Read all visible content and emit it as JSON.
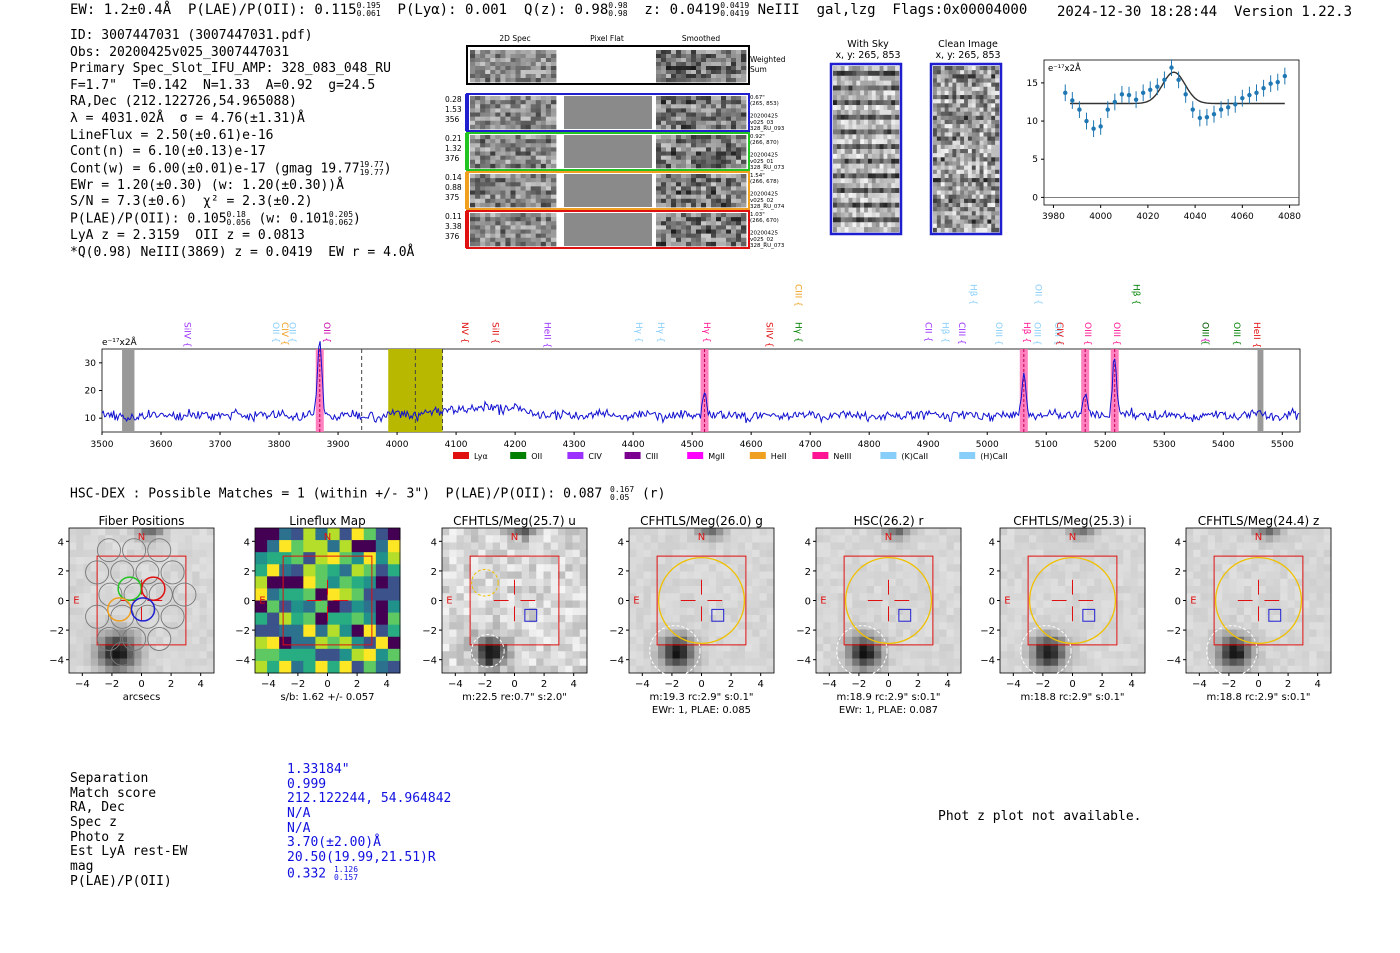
{
  "header": {
    "line": "EW: 1.2±0.4Å  P(LAE)/P(OII): 0.115",
    "line_p_up": "0.195",
    "line_p_lo": "0.061",
    "line_mid": "  P(Lyα): 0.001  Q(z): 0.98",
    "line_q_up": "0.98",
    "line_q_lo": "0.98",
    "line_z": "  z: 0.0419",
    "line_z_up": "0.0419",
    "line_z_lo": "0.0419",
    "line_tail": " NeIII  gal,lzg  Flags:0x00004000",
    "timestamp": "2024-12-30 18:28:44  Version 1.22.3"
  },
  "info": {
    "id": "ID: 3007447031 (3007447031.pdf)",
    "obs": "Obs: 20200425v025_3007447031",
    "primary": "Primary Spec_Slot_IFU_AMP: 328_083_048_RU",
    "fit": "F=1.7\"  T=0.142  N=1.33  A=0.92  g=24.5",
    "radec": "RA,Dec (212.122726,54.965088)",
    "lambda": "λ = 4031.02Å  σ = 4.76(±1.31)Å",
    "lineflux": "LineFlux = 2.50(±0.61)e-16",
    "contn": "Cont(n) = 6.10(±0.13)e-17",
    "contw": "Cont(w) = 6.00(±0.01)e-17 (gmag 19.77",
    "contw_up": "19.77",
    "contw_lo": "19.77",
    "contw_close": ")",
    "ewr": "EWr = 1.20(±0.30) (w: 1.20(±0.30))Å",
    "sn": "S/N = 7.3(±0.6)  χ² = 2.3(±0.2)",
    "plae": "P(LAE)/P(OII): 0.105",
    "plae_up": "0.18",
    "plae_lo": "0.056",
    "plae_w": " (w: 0.101",
    "plae_w_up": "0.205",
    "plae_w_lo": "0.062",
    "plae_close": ")",
    "lya": "LyA z = 2.3159  OII z = 0.0813",
    "q": "*Q(0.98) NeIII(3869) z = 0.0419  EW r = 4.0Å"
  },
  "cutouts": {
    "col_headers": [
      "2D Spec",
      "Pixel Flat",
      "Smoothed"
    ],
    "weighted_sum_label": "Weighted Sum",
    "rows": [
      {
        "stats": [
          "0.28",
          "1.53",
          "356"
        ],
        "color": "#1f1fd0",
        "meta": [
          "0.67\"",
          "(265, 853)",
          "",
          "20200425",
          "v025_03",
          "328_RU_093"
        ]
      },
      {
        "stats": [
          "0.21",
          "1.32",
          "376"
        ],
        "color": "#22c422",
        "meta": [
          "0.92\"",
          "(266, 870)",
          "",
          "20200425",
          "v025_01",
          "328_RU_073"
        ]
      },
      {
        "stats": [
          "0.14",
          "0.88",
          "375"
        ],
        "color": "#f0a020",
        "meta": [
          "1.54\"",
          "(266, 678)",
          "",
          "20200425",
          "v025_02",
          "328_RU_074"
        ]
      },
      {
        "stats": [
          "0.11",
          "3.38",
          "376"
        ],
        "color": "#e01010",
        "meta": [
          "1.03\"",
          "(266, 670)",
          "",
          "20200425",
          "v025_02",
          "328_RU_073"
        ]
      }
    ],
    "with_sky_title": "With Sky",
    "with_sky_coords": "x, y: 265, 853",
    "clean_title": "Clean Image",
    "clean_coords": "x, y: 265, 853"
  },
  "fit_plot": {
    "ylabel": "e⁻¹⁷x2Å",
    "xticks": [
      "3980",
      "4000",
      "4020",
      "4040",
      "4060",
      "4080"
    ],
    "yticks": [
      "0",
      "5",
      "10",
      "15"
    ],
    "xlim": [
      3976,
      4084
    ],
    "ylim": [
      -1,
      18
    ],
    "points_x": [
      3985,
      3988,
      3991,
      3994,
      3997,
      4000,
      4003,
      4006,
      4009,
      4012,
      4015,
      4018,
      4021,
      4024,
      4027,
      4030,
      4033,
      4036,
      4039,
      4042,
      4045,
      4048,
      4051,
      4054,
      4057,
      4060,
      4063,
      4066,
      4069,
      4072,
      4075,
      4078
    ],
    "points_y": [
      13.7,
      12.7,
      11.5,
      10.0,
      9.0,
      9.3,
      11.5,
      12.5,
      13.5,
      13.4,
      12.8,
      13.7,
      14.1,
      14.5,
      15.4,
      17.0,
      15.4,
      13.5,
      11.5,
      10.4,
      10.5,
      10.9,
      11.5,
      11.8,
      12.2,
      13.0,
      13.4,
      13.7,
      14.3,
      14.9,
      15.1,
      15.9
    ],
    "fit_peak": 16.4,
    "fit_base": 12.3,
    "fit_center": 4031,
    "fit_sigma": 4.76
  },
  "spectrum": {
    "ylabel": "e⁻¹⁷x2Å",
    "xlim": [
      3500,
      5530
    ],
    "ylim": [
      5,
      35
    ],
    "xticks": [
      3500,
      3600,
      3700,
      3800,
      3900,
      4000,
      4100,
      4200,
      4300,
      4400,
      4500,
      4600,
      4700,
      4800,
      4900,
      5000,
      5100,
      5200,
      5300,
      5400,
      5500
    ],
    "yticks": [
      10,
      20,
      30
    ],
    "emission_peaks": [
      {
        "x": 3869,
        "amp": 28
      },
      {
        "x": 4521,
        "amp": 9
      },
      {
        "x": 5062,
        "amp": 16
      },
      {
        "x": 5166,
        "amp": 7
      },
      {
        "x": 5216,
        "amp": 22
      }
    ],
    "line_labels": [
      {
        "x": 3640,
        "text": "SiIV",
        "color": "#9b30ff"
      },
      {
        "x": 3790,
        "text": "OII",
        "color": "#87cefa"
      },
      {
        "x": 3805,
        "text": "CIV",
        "color": "#f0a020"
      },
      {
        "x": 3818,
        "text": "OII",
        "color": "#87cefa"
      },
      {
        "x": 3876,
        "text": "OII",
        "color": "#cc00aa"
      },
      {
        "x": 4110,
        "text": "NV",
        "color": "#e01010"
      },
      {
        "x": 4162,
        "text": "SiII",
        "color": "#e01010"
      },
      {
        "x": 4250,
        "text": "HeII",
        "color": "#9b30ff"
      },
      {
        "x": 4405,
        "text": "Hγ",
        "color": "#87cefa"
      },
      {
        "x": 4442,
        "text": "Hγ",
        "color": "#87cefa"
      },
      {
        "x": 4520,
        "text": "Hγ",
        "color": "#ff1493"
      },
      {
        "x": 4626,
        "text": "SiIV",
        "color": "#e01010"
      },
      {
        "x": 4675,
        "text": "CIII",
        "color": "#f0a020"
      },
      {
        "x": 4675,
        "text": "Hγ",
        "color": "#008000"
      },
      {
        "x": 4895,
        "text": "CII",
        "color": "#9b30ff"
      },
      {
        "x": 4924,
        "text": "Hβ",
        "color": "#87cefa"
      },
      {
        "x": 4952,
        "text": "CIII",
        "color": "#9b30ff"
      },
      {
        "x": 4972,
        "text": "Hβ",
        "color": "#87cefa"
      },
      {
        "x": 5015,
        "text": "OIII",
        "color": "#87cefa"
      },
      {
        "x": 5062,
        "text": "Hβ",
        "color": "#ff1493"
      },
      {
        "x": 5080,
        "text": "OIII",
        "color": "#87cefa"
      },
      {
        "x": 5082,
        "text": "OII",
        "color": "#87cefa"
      },
      {
        "x": 5115,
        "text": "OIII",
        "color": "#87cefa"
      },
      {
        "x": 5118,
        "text": "CIV",
        "color": "#e01010"
      },
      {
        "x": 5166,
        "text": "OIII",
        "color": "#ff1493"
      },
      {
        "x": 5215,
        "text": "OIII",
        "color": "#ff1493"
      },
      {
        "x": 5248,
        "text": "Hβ",
        "color": "#008000"
      },
      {
        "x": 5365,
        "text": "OII",
        "color": "#cc00aa"
      },
      {
        "x": 5365,
        "text": "OIII",
        "color": "#008000"
      },
      {
        "x": 5418,
        "text": "OIII",
        "color": "#008000"
      },
      {
        "x": 5452,
        "text": "HeII",
        "color": "#e01010"
      }
    ],
    "legend": [
      {
        "text": "Lyα",
        "color": "#e01010"
      },
      {
        "text": "OII",
        "color": "#008000"
      },
      {
        "text": "CIV",
        "color": "#9b30ff"
      },
      {
        "text": "CIII",
        "color": "#7b0090"
      },
      {
        "text": "MgII",
        "color": "#ff00ff"
      },
      {
        "text": "HeII",
        "color": "#f0a020"
      },
      {
        "text": "NeIII",
        "color": "#ff1493"
      },
      {
        "text": "(K)CaII",
        "color": "#87cefa"
      },
      {
        "text": "(H)CaII",
        "color": "#87cefa"
      }
    ]
  },
  "hsc_line": "HSC-DEX : Possible Matches = 1 (within +/- 3\")  P(LAE)/P(OII): 0.087",
  "hsc_up": "0.167",
  "hsc_lo": "0.05",
  "hsc_tail": " (r)",
  "thumbnails": [
    {
      "title": "Fiber Positions",
      "sub1": "arcsecs",
      "sub2": "",
      "kind": "fibers"
    },
    {
      "title": "Lineflux Map",
      "sub1": "s/b: 1.62 +/- 0.057",
      "sub2": "",
      "kind": "lineflux"
    },
    {
      "title": "CFHTLS/Meg(25.7) u",
      "sub1": "m:22.5   re:0.7\"   s:2.0\"",
      "sub2": "",
      "kind": "u"
    },
    {
      "title": "CFHTLS/Meg(26.0) g",
      "sub1": "m:19.3 rc:2.9\"   s:0.1\"",
      "sub2": "EWr: 1, PLAE: 0.085",
      "kind": "g"
    },
    {
      "title": "HSC(26.2) r",
      "sub1": "m:18.9 rc:2.9\"   s:0.1\"",
      "sub2": "EWr: 1, PLAE: 0.087",
      "kind": "r"
    },
    {
      "title": "CFHTLS/Meg(25.3) i",
      "sub1": "m:18.8 rc:2.9\"   s:0.1\"",
      "sub2": "",
      "kind": "i"
    },
    {
      "title": "CFHTLS/Meg(24.4) z",
      "sub1": "m:18.8 rc:2.9\"   s:0.1\"",
      "sub2": "",
      "kind": "z"
    }
  ],
  "thumb_axis": {
    "ticks": [
      "−4",
      "−2",
      "0",
      "2",
      "4"
    ],
    "north": "N",
    "east": "E"
  },
  "separation_table": [
    {
      "label": "Separation",
      "value": "1.33184\""
    },
    {
      "label": "Match score",
      "value": "0.999"
    },
    {
      "label": "RA, Dec",
      "value": "212.122244, 54.964842"
    },
    {
      "label": "Spec z",
      "value": "N/A"
    },
    {
      "label": "Photo z",
      "value": "N/A"
    },
    {
      "label": "Est LyA rest-EW",
      "value": "3.70(±2.00)Å"
    },
    {
      "label": "mag",
      "value": "20.50(19.99,21.51)R"
    },
    {
      "label": "P(LAE)/P(OII)",
      "value": "0.332"
    }
  ],
  "sep_plae_up": "1.126",
  "sep_plae_lo": "0.157",
  "photz_text": "Phot z plot not available.",
  "chart_data": [
    {
      "type": "scatter",
      "title": "",
      "xlabel": "",
      "ylabel": "e⁻¹⁷x2Å",
      "xlim": [
        3976,
        4084
      ],
      "ylim": [
        -1,
        18
      ],
      "series": [
        {
          "x": [
            3985,
            3988,
            3991,
            3994,
            3997,
            4000,
            4003,
            4006,
            4009,
            4012,
            4015,
            4018,
            4021,
            4024,
            4027,
            4030,
            4033,
            4036,
            4039,
            4042,
            4045,
            4048,
            4051,
            4054,
            4057,
            4060,
            4063,
            4066,
            4069,
            4072,
            4075,
            4078
          ],
          "values": [
            13.7,
            12.7,
            11.5,
            10.0,
            9.0,
            9.3,
            11.5,
            12.5,
            13.5,
            13.4,
            12.8,
            13.7,
            14.1,
            14.5,
            15.4,
            17.0,
            15.4,
            13.5,
            11.5,
            10.4,
            10.5,
            10.9,
            11.5,
            11.8,
            12.2,
            13.0,
            13.4,
            13.7,
            14.3,
            14.9,
            15.1,
            15.9
          ]
        }
      ]
    },
    {
      "type": "line",
      "title": "",
      "xlabel": "",
      "ylabel": "e⁻¹⁷x2Å",
      "xlim": [
        3500,
        5530
      ],
      "ylim": [
        5,
        35
      ],
      "series": [
        {
          "x": [
            3869,
            4521,
            5062,
            5166,
            5216
          ],
          "values": [
            37,
            18,
            25,
            16,
            31
          ]
        }
      ]
    }
  ]
}
